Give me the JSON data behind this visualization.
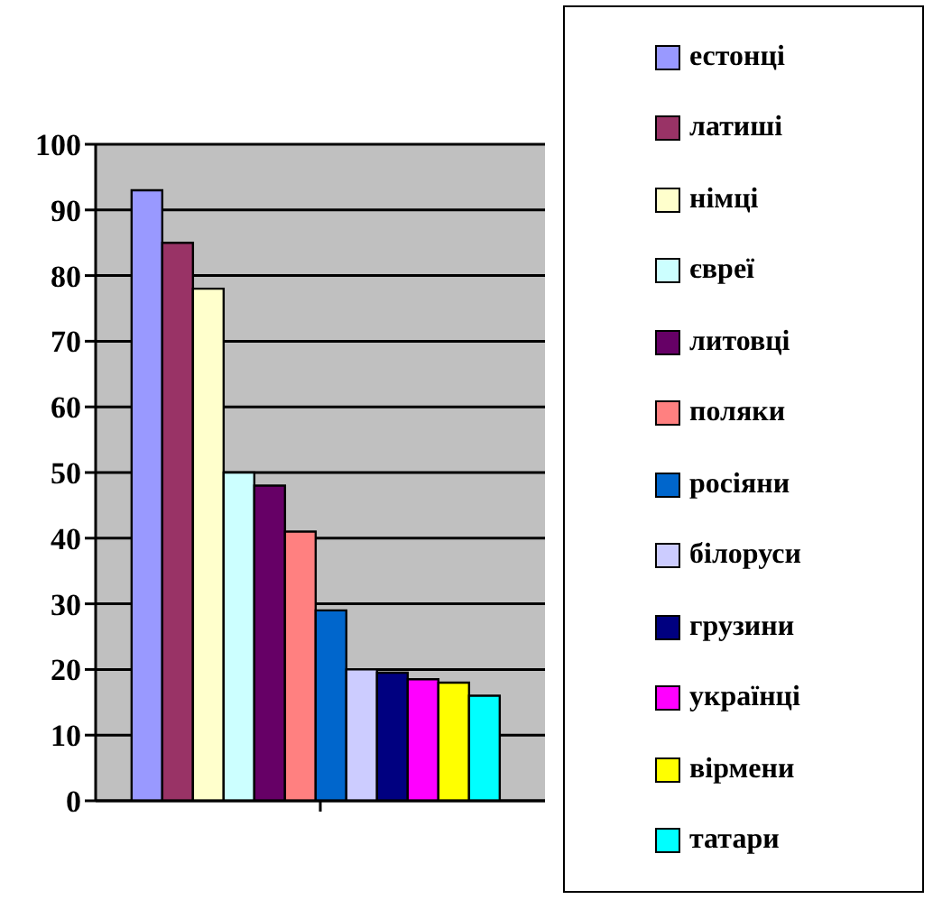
{
  "chart_data": {
    "type": "bar",
    "categories": [
      null
    ],
    "series": [
      {
        "name": "естонці",
        "color": "#9999ff",
        "values": [
          93
        ]
      },
      {
        "name": "латиші",
        "color": "#993366",
        "values": [
          85
        ]
      },
      {
        "name": "німці",
        "color": "#ffffcc",
        "values": [
          78
        ]
      },
      {
        "name": "євреї",
        "color": "#ccffff",
        "values": [
          50
        ]
      },
      {
        "name": "литовці",
        "color": "#660066",
        "values": [
          48
        ]
      },
      {
        "name": "поляки",
        "color": "#ff8080",
        "values": [
          41
        ]
      },
      {
        "name": "росіяни",
        "color": "#0066cc",
        "values": [
          29
        ]
      },
      {
        "name": "білоруси",
        "color": "#ccccff",
        "values": [
          20
        ]
      },
      {
        "name": "грузини",
        "color": "#000080",
        "values": [
          19.5
        ]
      },
      {
        "name": "українці",
        "color": "#ff00ff",
        "values": [
          18.5
        ]
      },
      {
        "name": "вірмени",
        "color": "#ffff00",
        "values": [
          18
        ]
      },
      {
        "name": "татари",
        "color": "#00ffff",
        "values": [
          16
        ]
      }
    ],
    "ylim": [
      0,
      100
    ],
    "yticks": [
      0,
      10,
      20,
      30,
      40,
      50,
      60,
      70,
      80,
      90,
      100
    ],
    "grid": "y",
    "legend": "right"
  }
}
